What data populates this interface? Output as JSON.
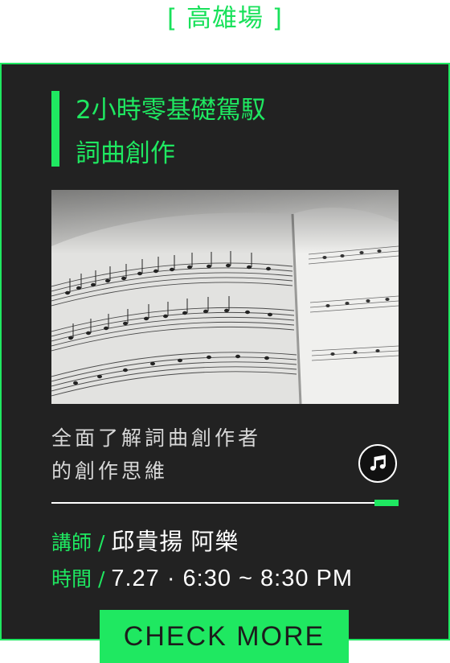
{
  "venue": "[ 高雄場 ]",
  "course": {
    "title_line1": "2小時零基礎駕馭",
    "title_line2": "詞曲創作",
    "image_alt": "sheet music",
    "description_line1": "全面了解詞曲創作者",
    "description_line2": "的創作思維",
    "music_icon": "music-note-icon",
    "teacher_label": "講師 / ",
    "teacher_value": "邱貴揚 阿樂",
    "time_label": "時間 / ",
    "time_value": "7.27 · 6:30 ~ 8:30 PM",
    "cta_label": "CHECK MORE"
  },
  "colors": {
    "accent": "#1fe861",
    "card_background": "#222222",
    "page_background": "#ffffff",
    "text_light": "#d8d8d8"
  }
}
